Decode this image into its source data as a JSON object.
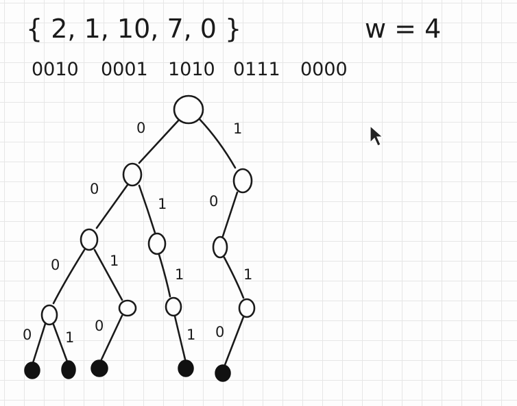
{
  "header": {
    "set_text": "{ 2,  1,  10,  7,  0 }",
    "width_text": "w = 4"
  },
  "binaries": [
    "0010",
    "0001",
    "1010",
    "0111",
    "0000"
  ],
  "edge_labels": {
    "root_left": "0",
    "root_right": "1",
    "l_left": "0",
    "l_right": "1",
    "r_left": "0",
    "ll_left": "0",
    "ll_right": "1",
    "lr_right": "1",
    "rl_right": "1",
    "lll_left": "0",
    "lll_right": "1",
    "llr_left": "0",
    "lrr_right": "1",
    "rlr_left": "0"
  },
  "icons": {
    "cursor": "mouse-pointer-icon"
  }
}
